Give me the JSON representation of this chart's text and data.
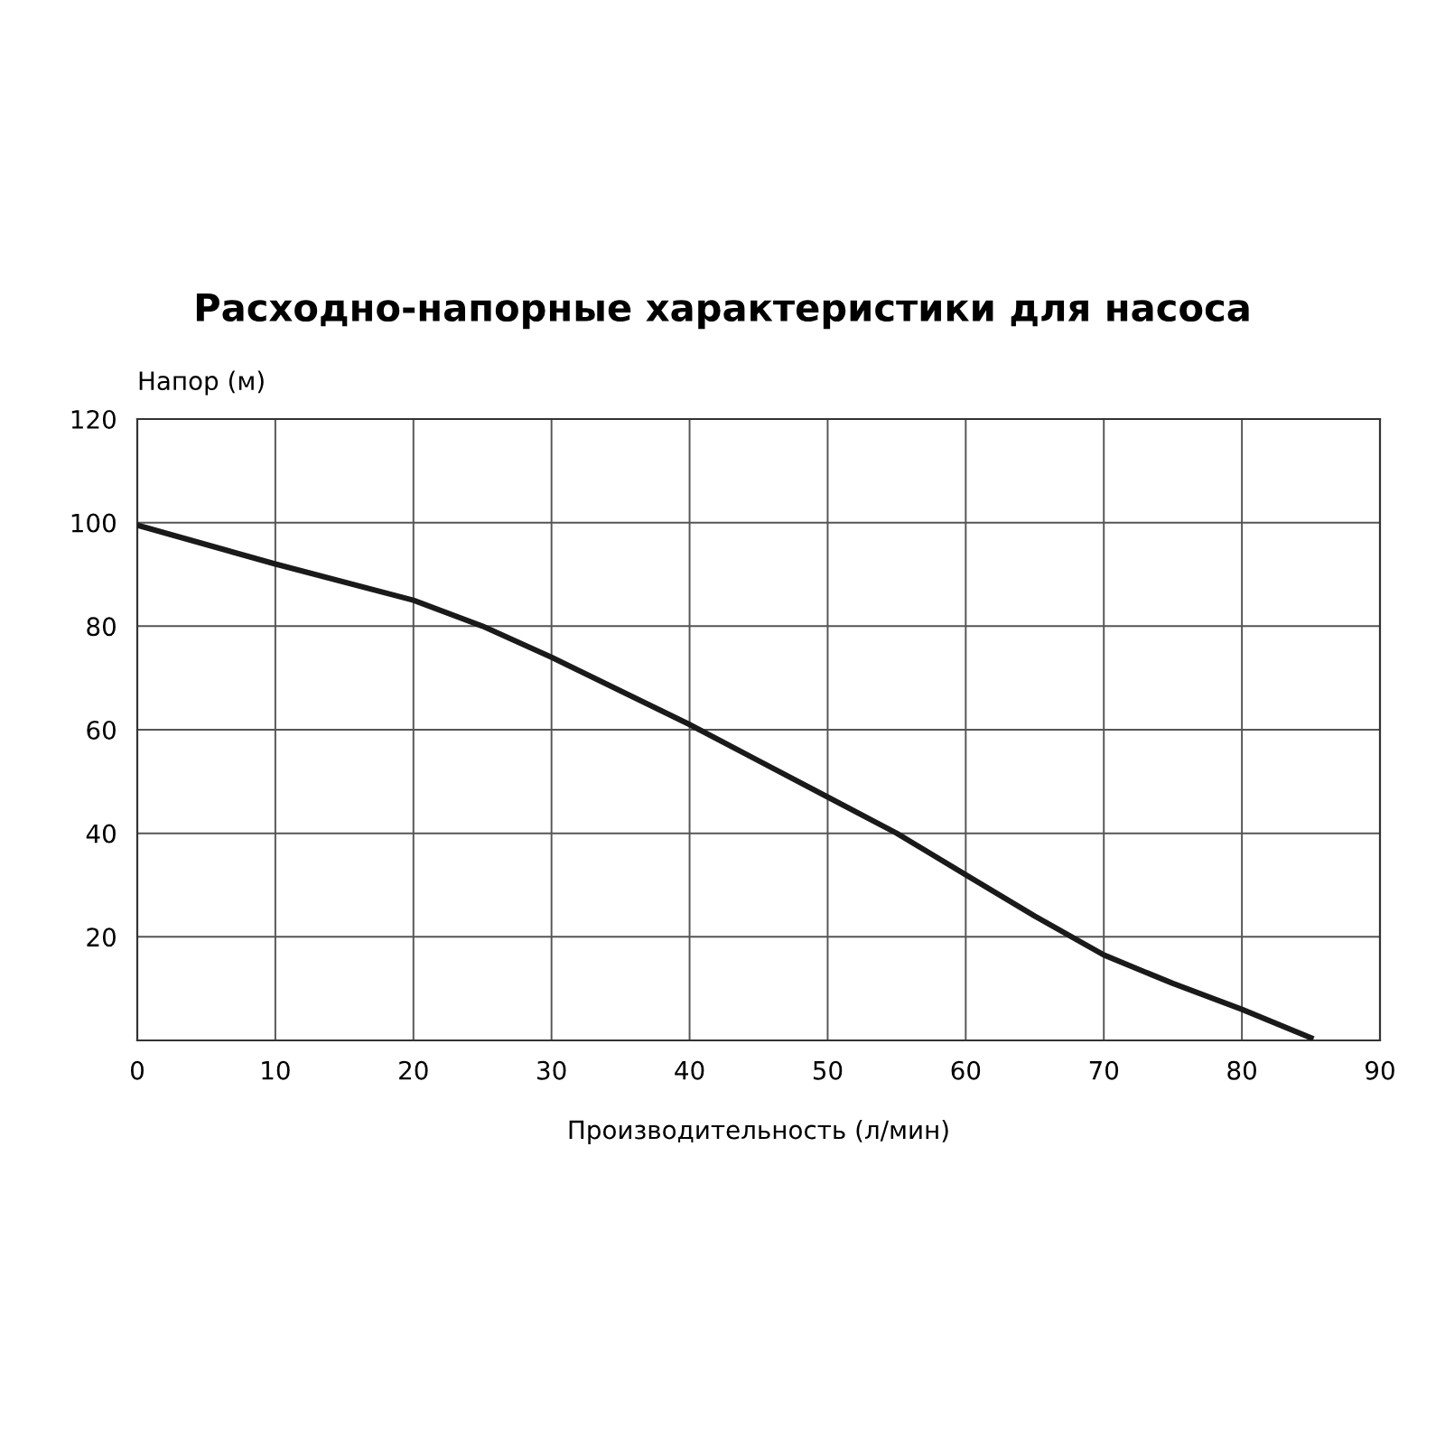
{
  "chart_data": {
    "type": "line",
    "title": "Расходно-напорные характеристики для насоса",
    "xlabel": "Производительность (л/мин)",
    "ylabel": "Напор (м)",
    "x": [
      0,
      10,
      20,
      25,
      30,
      35,
      40,
      45,
      50,
      55,
      60,
      65,
      70,
      75,
      80,
      85
    ],
    "series": [
      {
        "color": "#1a1a1a",
        "values": [
          99.5,
          92,
          85,
          80,
          74,
          67.5,
          61,
          54,
          47,
          40,
          32,
          24,
          16.5,
          11,
          6,
          0.5
        ]
      }
    ],
    "xlim": [
      0,
      90
    ],
    "xticks": [
      0,
      10,
      20,
      30,
      40,
      50,
      60,
      70,
      80,
      90
    ],
    "ylim": [
      0,
      120
    ],
    "yticks": [
      {
        "value": 0,
        "label": null
      },
      20,
      40,
      60,
      80,
      100,
      120
    ],
    "grid": true,
    "marker": "none",
    "line_style": "solid"
  }
}
